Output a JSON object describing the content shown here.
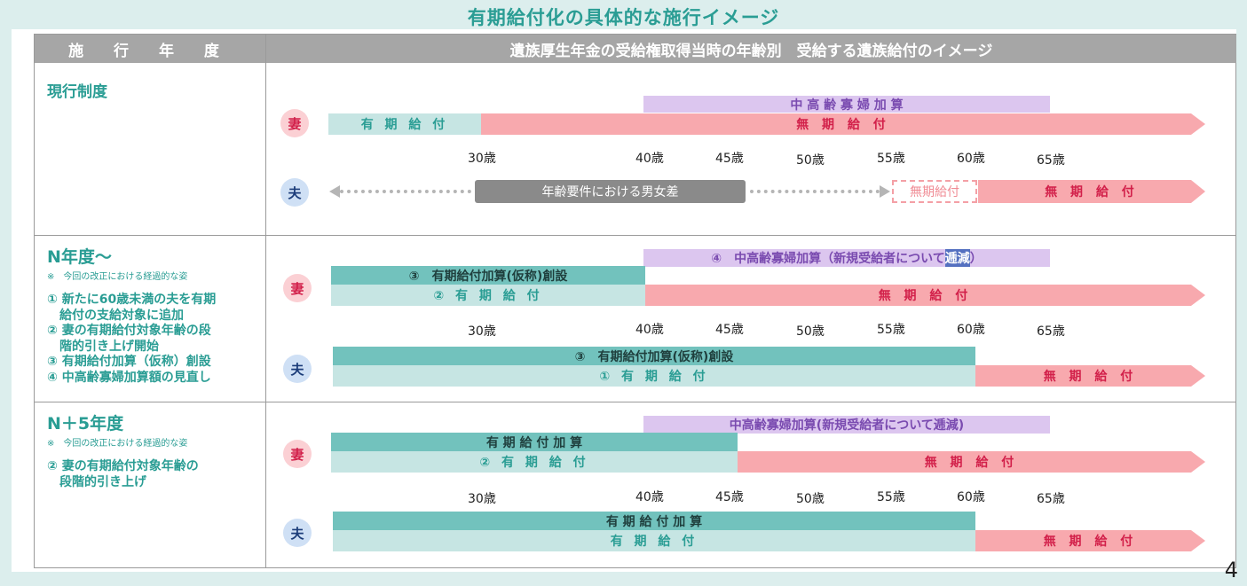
{
  "title": "有期給付化の具体的な施行イメージ",
  "header": {
    "left": "施 行 年 度",
    "right": "遺族厚生年金の受給権取得当時の年齢別　受給する遺族給付のイメージ"
  },
  "ages": [
    "30歳",
    "40歳",
    "45歳",
    "50歳",
    "55歳",
    "60歳",
    "65歳"
  ],
  "labels": {
    "wife": "妻",
    "husband": "夫"
  },
  "rows": [
    {
      "title": "現行制度",
      "wife": {
        "top": "中 高 齢 寡 婦 加 算",
        "fixed": "有 期 給 付",
        "indefinite": "無 期 給 付"
      },
      "husband": {
        "gap": "年齢要件における男女差",
        "dashed": "無期給付",
        "indefinite": "無 期 給 付"
      }
    },
    {
      "title": "N年度～",
      "note": "※　今回の改正における経過的な姿",
      "items": [
        "① 新たに60歳未満の夫を有期",
        "　給付の支給対象に追加",
        "② 妻の有期給付対象年齢の段",
        "　階的引き上げ開始",
        "③ 有期給付加算（仮称）創設",
        "④ 中高齢寡婦加算額の見直し"
      ],
      "wife": {
        "top_prefix": "④　中高齢寡婦加算（新規受給者について",
        "top_hl": "逓減",
        "top_suffix": "）",
        "add": "③　有期給付加算(仮称)創設",
        "fixed": "②  有 期 給 付",
        "indefinite": "無 期 給 付"
      },
      "husband": {
        "add": "③　有期給付加算(仮称)創設",
        "fixed": "①  有 期 給 付",
        "indefinite": "無 期 給 付"
      }
    },
    {
      "title": "N＋5年度",
      "note": "※　今回の改正における経過的な姿",
      "items": [
        "② 妻の有期給付対象年齢の",
        "　段階的引き上げ"
      ],
      "wife": {
        "top": "中高齢寡婦加算(新規受給者について逓減)",
        "add": "有 期 給 付 加 算",
        "fixed": "②  有 期 給 付",
        "indefinite": "無 期 給 付"
      },
      "husband": {
        "add": "有 期 給 付 加 算",
        "fixed": "有 期 給 付",
        "indefinite": "無 期 給 付"
      }
    }
  ],
  "page_number": "4"
}
